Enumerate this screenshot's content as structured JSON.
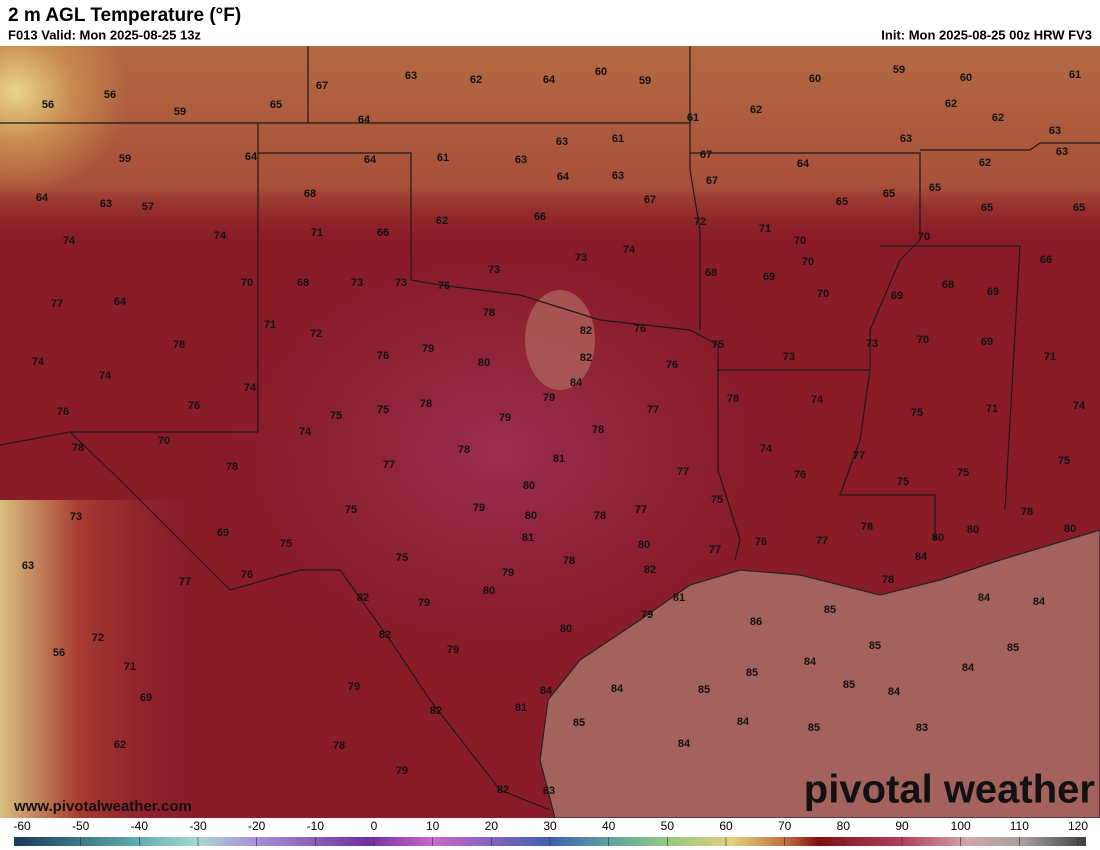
{
  "header": {
    "title": "2 m AGL Temperature (°F)",
    "valid": "F013 Valid: Mon 2025-08-25 13z",
    "init": "Init: Mon 2025-08-25 00z HRW FV3"
  },
  "map": {
    "labels": [
      56,
      56,
      59,
      65,
      67,
      63,
      62,
      64,
      60,
      59,
      60,
      59,
      60,
      61,
      62,
      62,
      62,
      61,
      64,
      63,
      59,
      64,
      64,
      61,
      63,
      63,
      61,
      67,
      64,
      63,
      62,
      63,
      64,
      63,
      57,
      68,
      64,
      63,
      67,
      67,
      65,
      65,
      65,
      65,
      65,
      74,
      74,
      71,
      66,
      62,
      66,
      72,
      71,
      70,
      70,
      66,
      70,
      68,
      73,
      73,
      76,
      73,
      73,
      74,
      68,
      69,
      70,
      68,
      69,
      77,
      64,
      71,
      72,
      78,
      82,
      76,
      70,
      69,
      74,
      78,
      76,
      79,
      80,
      82,
      75,
      76,
      73,
      73,
      70,
      69,
      71,
      74,
      74,
      84,
      76,
      76,
      75,
      75,
      78,
      79,
      79,
      77,
      78,
      74,
      75,
      71,
      74,
      78,
      70,
      74,
      78,
      78,
      77,
      78,
      74,
      77,
      81,
      77,
      76,
      75,
      75,
      75,
      80,
      75,
      73,
      75,
      79,
      80,
      78,
      77,
      78,
      80,
      69,
      75,
      81,
      80,
      76,
      77,
      78,
      80,
      80,
      84,
      63,
      76,
      75,
      78,
      77,
      82,
      79,
      77,
      80,
      82,
      79,
      81,
      78,
      85,
      84,
      84,
      86,
      79,
      72,
      56,
      71,
      82,
      80,
      79,
      85,
      84,
      85,
      85,
      84,
      69,
      79,
      84,
      84,
      85,
      85,
      84,
      62,
      82,
      81,
      85,
      84,
      85,
      83,
      78,
      84,
      79,
      82,
      83
    ]
  },
  "footer": {
    "website": "www.pivotalweather.com",
    "logo": "pivotal weather"
  },
  "colorbar": {
    "ticks": [
      -60,
      -50,
      -40,
      -30,
      -20,
      -10,
      0,
      10,
      20,
      30,
      40,
      50,
      60,
      70,
      80,
      90,
      100,
      110,
      120
    ]
  }
}
